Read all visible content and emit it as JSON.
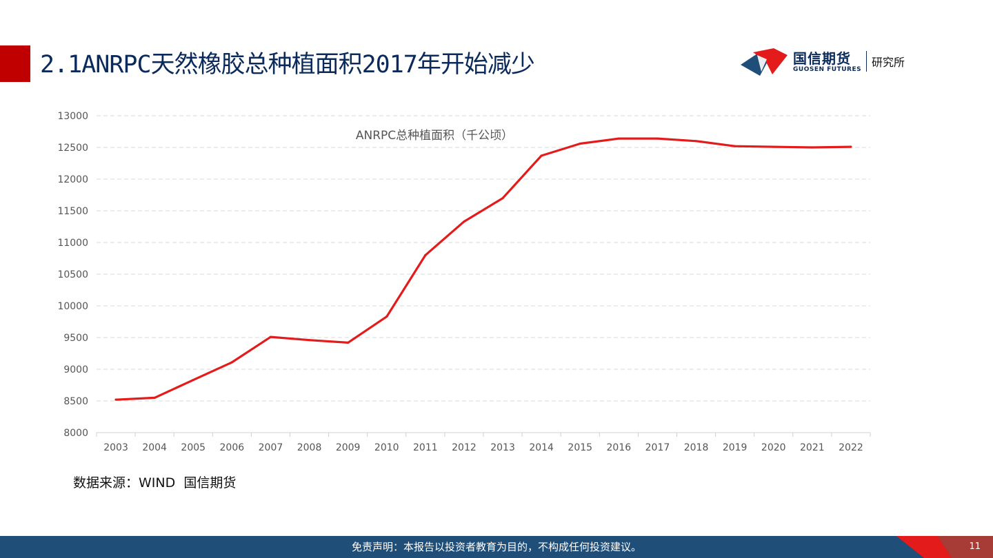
{
  "header": {
    "title": "2.1ANRPC天然橡胶总种植面积2017年开始减少",
    "logo_cn": "国信期货",
    "logo_en": "GUOSEN FUTURES",
    "logo_dept": "研究所",
    "accent_color": "#c00000",
    "brand_color": "#0b2a5c"
  },
  "chart_data": {
    "type": "line",
    "title": "ANRPC总种植面积（千公顷）",
    "categories": [
      "2003",
      "2004",
      "2005",
      "2006",
      "2007",
      "2008",
      "2009",
      "2010",
      "2011",
      "2012",
      "2013",
      "2014",
      "2015",
      "2016",
      "2017",
      "2018",
      "2019",
      "2020",
      "2021",
      "2022"
    ],
    "series": [
      {
        "color": "#e31b1b",
        "values": [
          8520,
          8550,
          8830,
          9110,
          9510,
          9460,
          9420,
          9830,
          10800,
          11330,
          11700,
          12370,
          12560,
          12640,
          12640,
          12600,
          12520,
          12510,
          12500,
          12510
        ]
      }
    ],
    "yticks": [
      "13000",
      "12500",
      "12000",
      "11500",
      "11000",
      "10500",
      "10000",
      "9500",
      "9000",
      "8500",
      "8000"
    ],
    "ylim": [
      8000,
      13000
    ],
    "grid": true
  },
  "source": "数据来源：WIND  国信期货",
  "footer": {
    "disclaimer": "免责声明：本报告以投资者教育为目的，不构成任何投资建议。",
    "page": "11",
    "bg_color": "#1f4e79"
  }
}
